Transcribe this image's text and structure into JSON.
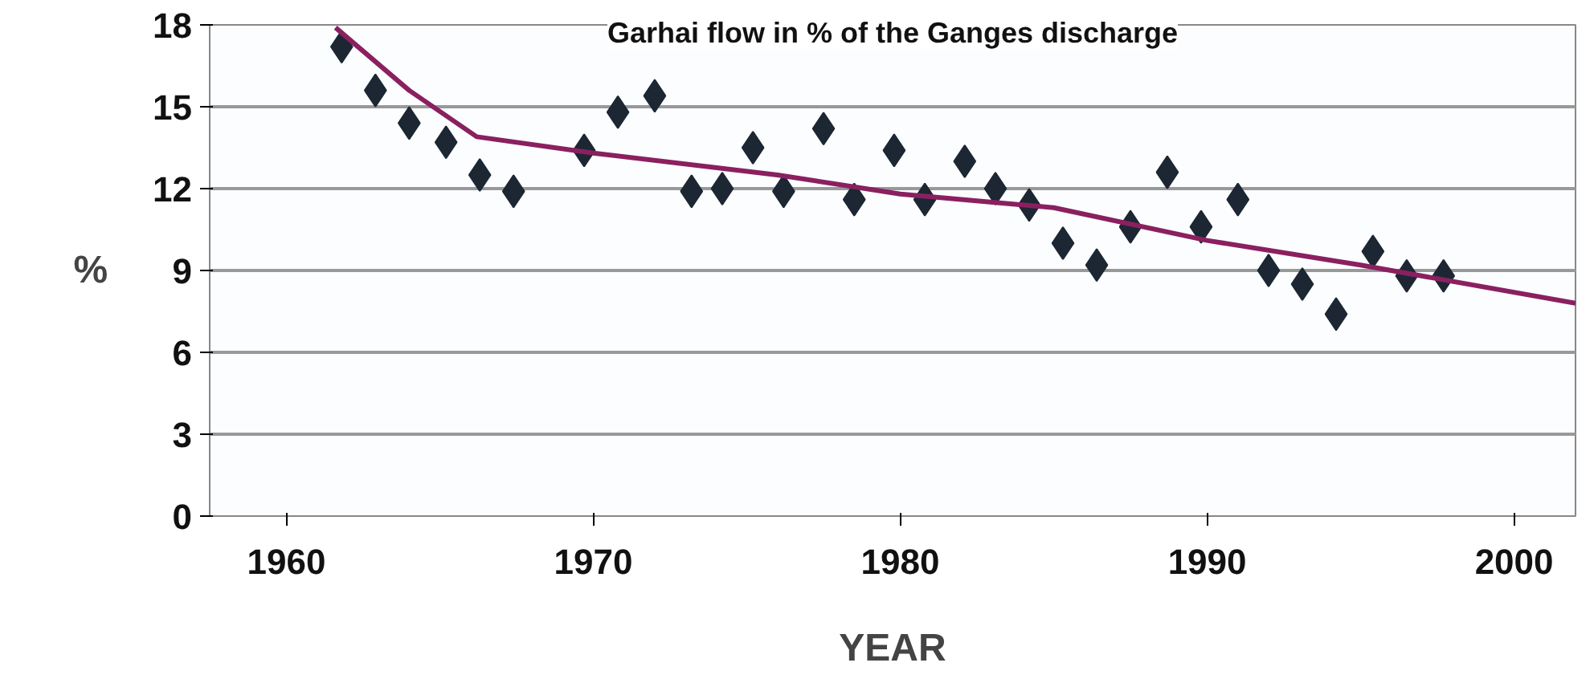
{
  "chart_data": {
    "type": "scatter",
    "title": "Garhai flow in % of the Ganges discharge",
    "xlabel": "YEAR",
    "ylabel": "%",
    "xlim": [
      1957.5,
      2002
    ],
    "xticks": [
      1960,
      1970,
      1980,
      1990,
      2000
    ],
    "ylim": [
      0,
      18
    ],
    "yticks": [
      0,
      3,
      6,
      9,
      12,
      15,
      18
    ],
    "grid": "y",
    "series": [
      {
        "marker": "diamond",
        "color": "#1c2733",
        "x": [
          1961.8,
          1962.9,
          1964.0,
          1965.2,
          1966.3,
          1967.4,
          1969.7,
          1970.8,
          1972.0,
          1973.2,
          1974.2,
          1975.2,
          1976.2,
          1977.5,
          1978.5,
          1979.8,
          1980.8,
          1982.1,
          1983.1,
          1984.2,
          1985.3,
          1986.4,
          1987.5,
          1988.7,
          1989.8,
          1991.0,
          1992.0,
          1993.1,
          1994.2,
          1995.4,
          1996.5,
          1997.7
        ],
        "values": [
          17.2,
          15.6,
          14.4,
          13.7,
          12.5,
          11.9,
          13.4,
          14.8,
          15.4,
          11.9,
          12.0,
          13.5,
          11.9,
          14.2,
          11.6,
          13.4,
          11.6,
          13.0,
          12.0,
          11.4,
          10.0,
          9.2,
          10.6,
          12.6,
          10.6,
          11.6,
          9.0,
          8.5,
          7.4,
          9.7,
          8.8,
          8.8
        ]
      },
      {
        "type": "line",
        "marker": "none",
        "color": "#8a2060",
        "x": [
          1961.6,
          1964,
          1966.2,
          1970,
          1976,
          1980,
          1985,
          1990,
          1995,
          2002
        ],
        "values": [
          17.9,
          15.6,
          13.9,
          13.3,
          12.5,
          11.8,
          11.3,
          10.1,
          9.2,
          7.8
        ]
      }
    ]
  }
}
